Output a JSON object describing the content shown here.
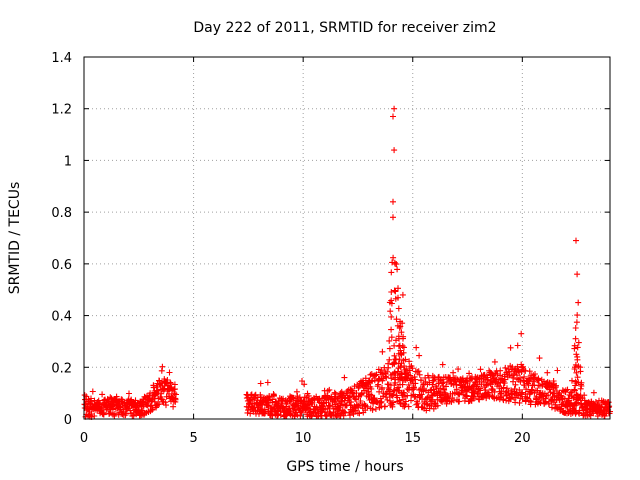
{
  "chart_data": {
    "type": "scatter",
    "title": "Day 222 of 2011, SRMTID for receiver zim2",
    "xlabel": "GPS time / hours",
    "ylabel": "SRMTID / TECUs",
    "xlim": [
      0,
      24
    ],
    "ylim": [
      0,
      1.4
    ],
    "x_ticks": [
      0,
      5,
      10,
      15,
      20
    ],
    "x_tick_labels": [
      "0",
      "5",
      "10",
      "15",
      "20"
    ],
    "y_ticks": [
      0,
      0.2,
      0.4,
      0.6,
      0.8,
      1.0,
      1.2,
      1.4
    ],
    "y_tick_labels": [
      "0",
      "0.2",
      "0.4",
      "0.6",
      "0.8",
      "1",
      "1.2",
      "1.4"
    ],
    "grid": true,
    "marker": "+",
    "series_color": "#ff0000",
    "data_gap_hours": [
      4.2,
      7.4
    ],
    "peaks": [
      {
        "x": 14.15,
        "y": 1.2
      },
      {
        "x": 14.1,
        "y": 1.17
      },
      {
        "x": 14.15,
        "y": 1.04
      },
      {
        "x": 14.1,
        "y": 0.84
      },
      {
        "x": 14.1,
        "y": 0.78
      },
      {
        "x": 14.2,
        "y": 0.6
      },
      {
        "x": 14.55,
        "y": 0.48
      },
      {
        "x": 22.45,
        "y": 0.69
      },
      {
        "x": 22.5,
        "y": 0.56
      },
      {
        "x": 22.55,
        "y": 0.45
      },
      {
        "x": 19.95,
        "y": 0.33
      },
      {
        "x": 3.9,
        "y": 0.18
      }
    ],
    "envelope": [
      {
        "x": 0.0,
        "base": 0.05,
        "amp": 0.05
      },
      {
        "x": 0.5,
        "base": 0.04,
        "amp": 0.03
      },
      {
        "x": 1.5,
        "base": 0.05,
        "amp": 0.04
      },
      {
        "x": 2.5,
        "base": 0.04,
        "amp": 0.03
      },
      {
        "x": 3.0,
        "base": 0.06,
        "amp": 0.04
      },
      {
        "x": 3.5,
        "base": 0.11,
        "amp": 0.05
      },
      {
        "x": 4.2,
        "base": 0.09,
        "amp": 0.05
      },
      {
        "x": 7.4,
        "base": 0.06,
        "amp": 0.04
      },
      {
        "x": 9.0,
        "base": 0.05,
        "amp": 0.04
      },
      {
        "x": 10.5,
        "base": 0.05,
        "amp": 0.04
      },
      {
        "x": 12.0,
        "base": 0.06,
        "amp": 0.05
      },
      {
        "x": 13.5,
        "base": 0.12,
        "amp": 0.08
      },
      {
        "x": 14.5,
        "base": 0.15,
        "amp": 0.1
      },
      {
        "x": 15.5,
        "base": 0.1,
        "amp": 0.07
      },
      {
        "x": 17.0,
        "base": 0.11,
        "amp": 0.05
      },
      {
        "x": 18.5,
        "base": 0.13,
        "amp": 0.05
      },
      {
        "x": 19.8,
        "base": 0.14,
        "amp": 0.08
      },
      {
        "x": 21.0,
        "base": 0.1,
        "amp": 0.05
      },
      {
        "x": 22.0,
        "base": 0.07,
        "amp": 0.05
      },
      {
        "x": 23.0,
        "base": 0.04,
        "amp": 0.03
      },
      {
        "x": 24.0,
        "base": 0.04,
        "amp": 0.03
      }
    ]
  }
}
